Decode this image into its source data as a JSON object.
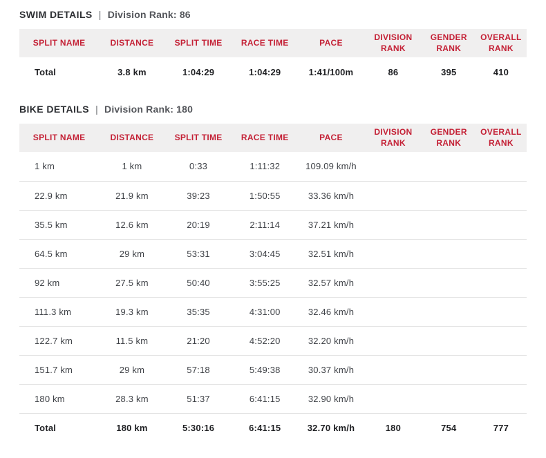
{
  "colors": {
    "accent_red": "#c42136",
    "header_bg": "#f0efef",
    "row_border": "#e4e4e4"
  },
  "sections": [
    {
      "title": "SWIM DETAILS",
      "divider": "|",
      "rank_label": "Division Rank: 86",
      "columns": [
        "SPLIT NAME",
        "DISTANCE",
        "SPLIT TIME",
        "RACE TIME",
        "PACE",
        "DIVISION RANK",
        "GENDER RANK",
        "OVERALL RANK"
      ],
      "rows": [
        {
          "bold": true,
          "cells": [
            "Total",
            "3.8 km",
            "1:04:29",
            "1:04:29",
            "1:41/100m",
            "86",
            "395",
            "410"
          ]
        }
      ]
    },
    {
      "title": "BIKE DETAILS",
      "divider": "|",
      "rank_label": "Division Rank: 180",
      "columns": [
        "SPLIT NAME",
        "DISTANCE",
        "SPLIT TIME",
        "RACE TIME",
        "PACE",
        "DIVISION RANK",
        "GENDER RANK",
        "OVERALL RANK"
      ],
      "rows": [
        {
          "bold": false,
          "cells": [
            "1 km",
            "1 km",
            "0:33",
            "1:11:32",
            "109.09 km/h",
            "",
            "",
            ""
          ]
        },
        {
          "bold": false,
          "cells": [
            "22.9 km",
            "21.9 km",
            "39:23",
            "1:50:55",
            "33.36 km/h",
            "",
            "",
            ""
          ]
        },
        {
          "bold": false,
          "cells": [
            "35.5 km",
            "12.6 km",
            "20:19",
            "2:11:14",
            "37.21 km/h",
            "",
            "",
            ""
          ]
        },
        {
          "bold": false,
          "cells": [
            "64.5 km",
            "29 km",
            "53:31",
            "3:04:45",
            "32.51 km/h",
            "",
            "",
            ""
          ]
        },
        {
          "bold": false,
          "cells": [
            "92 km",
            "27.5 km",
            "50:40",
            "3:55:25",
            "32.57 km/h",
            "",
            "",
            ""
          ]
        },
        {
          "bold": false,
          "cells": [
            "111.3 km",
            "19.3 km",
            "35:35",
            "4:31:00",
            "32.46 km/h",
            "",
            "",
            ""
          ]
        },
        {
          "bold": false,
          "cells": [
            "122.7 km",
            "11.5 km",
            "21:20",
            "4:52:20",
            "32.20 km/h",
            "",
            "",
            ""
          ]
        },
        {
          "bold": false,
          "cells": [
            "151.7 km",
            "29 km",
            "57:18",
            "5:49:38",
            "30.37 km/h",
            "",
            "",
            ""
          ]
        },
        {
          "bold": false,
          "cells": [
            "180 km",
            "28.3 km",
            "51:37",
            "6:41:15",
            "32.90 km/h",
            "",
            "",
            ""
          ]
        },
        {
          "bold": true,
          "cells": [
            "Total",
            "180 km",
            "5:30:16",
            "6:41:15",
            "32.70 km/h",
            "180",
            "754",
            "777"
          ]
        }
      ]
    }
  ]
}
